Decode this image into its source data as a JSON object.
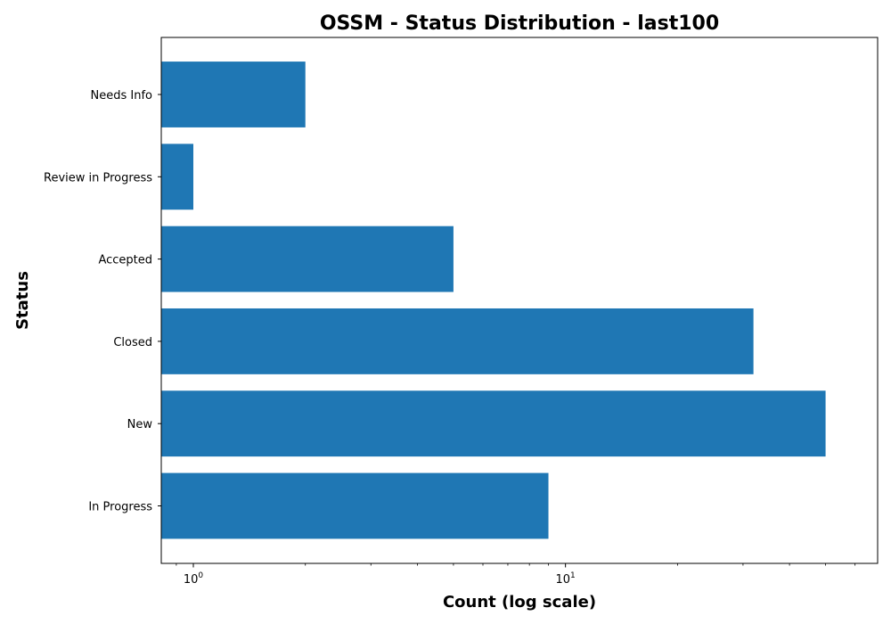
{
  "chart_data": {
    "type": "bar",
    "orientation": "horizontal",
    "title": "OSSM - Status Distribution - last100",
    "xlabel": "Count (log scale)",
    "ylabel": "Status",
    "xscale": "log",
    "xlim": [
      0.82,
      69
    ],
    "categories": [
      "In Progress",
      "New",
      "Closed",
      "Accepted",
      "Review in Progress",
      "Needs Info"
    ],
    "values": [
      9,
      50,
      32,
      5,
      1,
      2
    ],
    "bar_color": "#1f77b4",
    "x_major_ticks": [
      {
        "value": 1,
        "base": "10",
        "exp": "0"
      },
      {
        "value": 10,
        "base": "10",
        "exp": "1"
      }
    ],
    "grid": false,
    "legend": "none"
  }
}
